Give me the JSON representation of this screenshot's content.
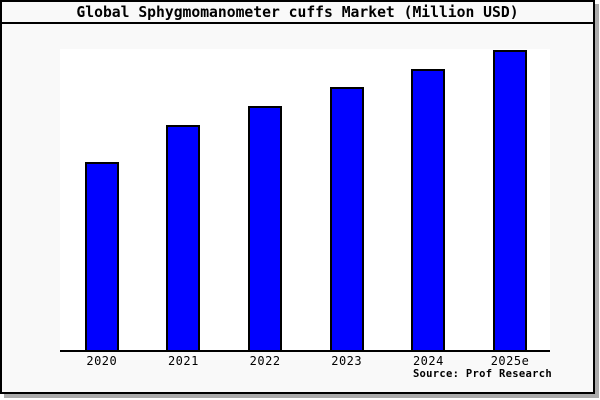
{
  "window": {
    "title": "Global Sphygmomanometer cuffs Market (Million USD)",
    "source_note": "Source: Prof Research"
  },
  "colors": {
    "bar_fill": "#0000ff",
    "bar_border": "#000000",
    "panel_background": "#f9f9f9",
    "plot_background": "#ffffff",
    "panel_border": "#000000",
    "panel_shadow": "#ababab",
    "text": "#000000"
  },
  "chart_data": {
    "type": "bar",
    "title": "Global Sphygmomanometer cuffs Market (Million USD)",
    "unit": "Million USD",
    "categories": [
      "2020",
      "2021",
      "2022",
      "2023",
      "2024",
      "2025e"
    ],
    "values_relative_pct_of_max": [
      62.7,
      75.0,
      81.3,
      87.7,
      93.8,
      100.0
    ],
    "xlabel": "",
    "ylabel": "",
    "y_axis_ticks": "none",
    "gridlines": false,
    "legend": false,
    "bar_color": "#0000ff",
    "source": "Source: Prof Research"
  }
}
